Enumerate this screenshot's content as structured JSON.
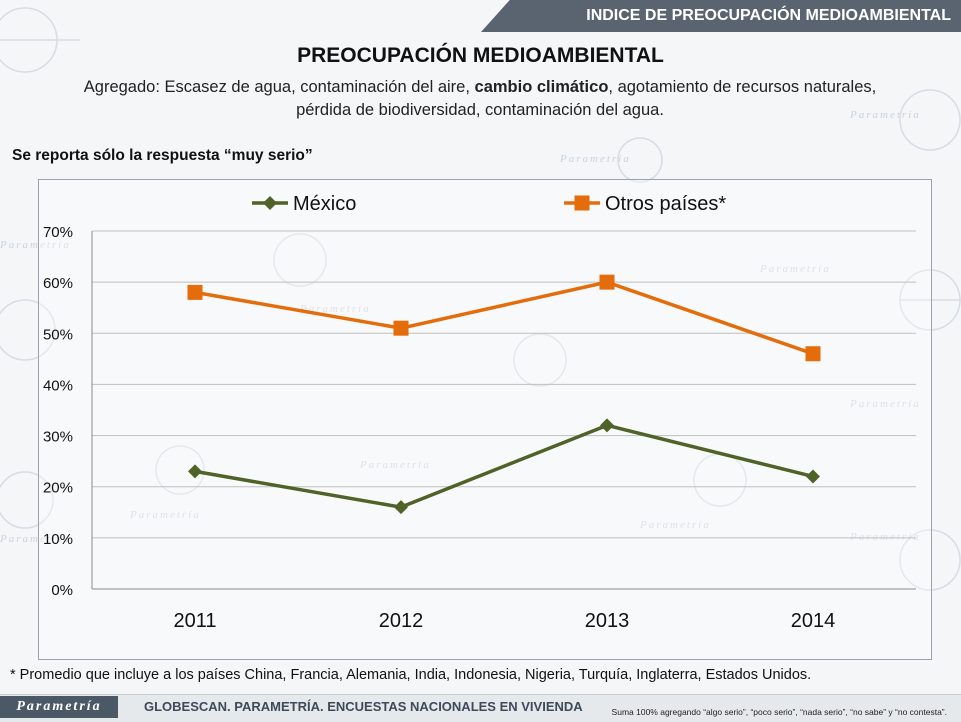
{
  "header": {
    "banner": "INDICE DE PREOCUPACIÓN MEDIOAMBIENTAL",
    "title": "PREOCUPACIÓN MEDIOAMBIENTAL",
    "subtitle_a": "Agregado: Escasez de agua, contaminación del aire, ",
    "subtitle_bold": "cambio climático",
    "subtitle_b": ", agotamiento de recursos naturales,",
    "subtitle_c": "pérdida de biodiversidad, contaminación del agua."
  },
  "note_top": "Se reporta sólo la respuesta “muy serio”",
  "footnote": "* Promedio que incluye a los países China, Francia, Alemania, India, Indonesia, Nigeria, Turquía, Inglaterra, Estados Unidos.",
  "footer": {
    "logo": "Parametría",
    "source": "GLOBESCAN. PARAMETRÍA. ENCUESTAS NACIONALES EN VIVIENDA",
    "note": "Suma 100%  agregando “algo serio”, “poco serio”, “nada serio”, “no sabe” y “no contesta”."
  },
  "background": {
    "watermark": "Parametría"
  },
  "colors": {
    "mexico": "#4f6228",
    "otros": "#e46c0a",
    "gridline": "#bfbfbf",
    "banner": "#5a6470"
  },
  "chart_data": {
    "type": "line",
    "categories": [
      "2011",
      "2012",
      "2013",
      "2014"
    ],
    "series": [
      {
        "name": "México",
        "values": [
          23,
          16,
          32,
          22
        ],
        "marker": "diamond"
      },
      {
        "name": "Otros países*",
        "values": [
          58,
          51,
          60,
          46
        ],
        "marker": "square"
      }
    ],
    "ylim": [
      0,
      70
    ],
    "yticks": [
      "0%",
      "10%",
      "20%",
      "30%",
      "40%",
      "50%",
      "60%",
      "70%"
    ],
    "ytick_values": [
      0,
      10,
      20,
      30,
      40,
      50,
      60,
      70
    ],
    "grid": true,
    "legend": "top"
  }
}
